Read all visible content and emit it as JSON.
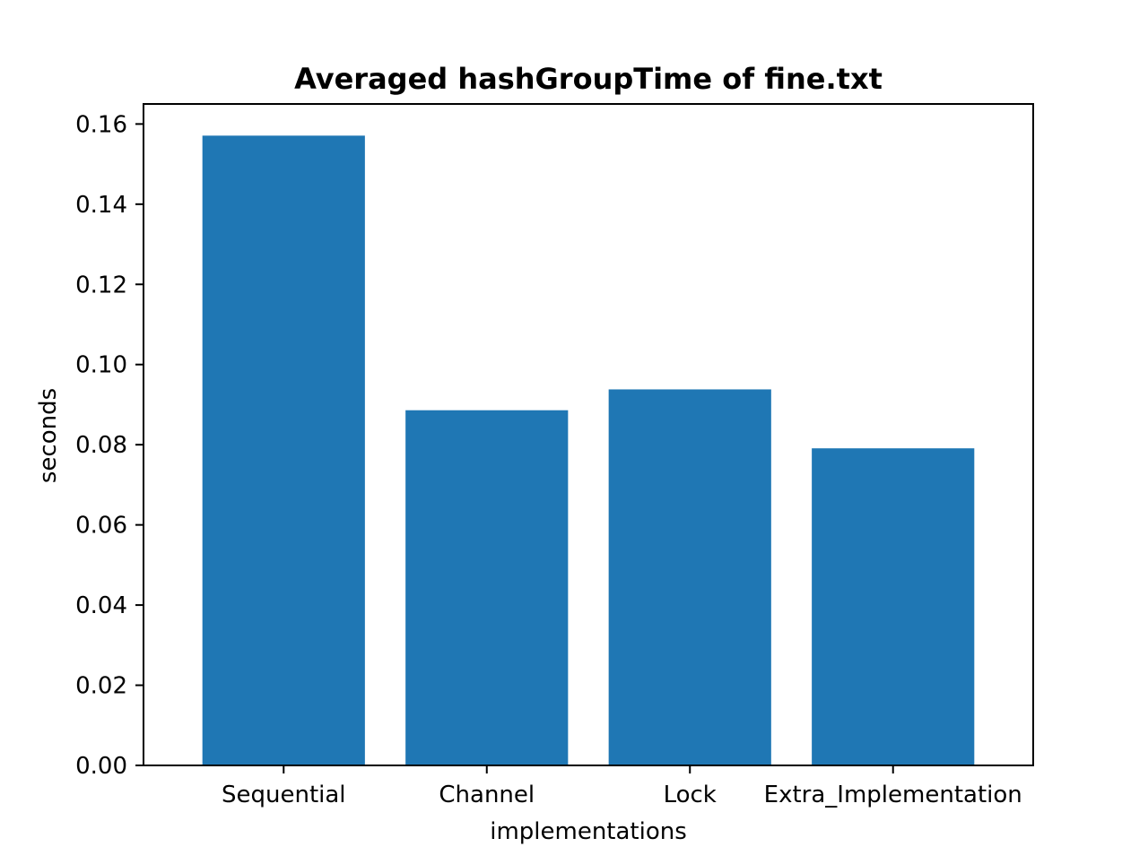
{
  "chart_data": {
    "type": "bar",
    "title": "Averaged hashGroupTime of fine.txt",
    "xlabel": "implementations",
    "ylabel": "seconds",
    "categories": [
      "Sequential",
      "Channel",
      "Lock",
      "Extra_Implementation"
    ],
    "values": [
      0.1571,
      0.0886,
      0.0938,
      0.0791
    ],
    "ylim": [
      0,
      0.165
    ],
    "yticks": [
      0.0,
      0.02,
      0.04,
      0.06,
      0.08,
      0.1,
      0.12,
      0.14,
      0.16
    ],
    "ytick_labels": [
      "0.00",
      "0.02",
      "0.04",
      "0.06",
      "0.08",
      "0.10",
      "0.12",
      "0.14",
      "0.16"
    ],
    "bar_color": "#1f77b4",
    "grid": false,
    "legend": "none"
  }
}
